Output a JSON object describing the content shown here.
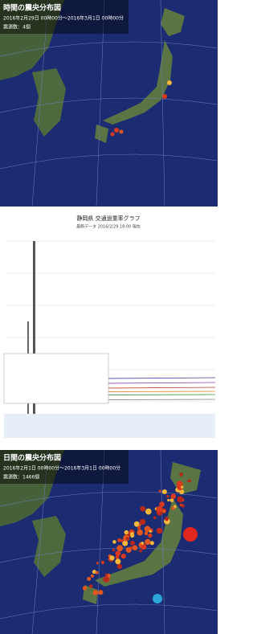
{
  "panels": [
    {
      "title": "時間の震央分布図",
      "period": "2016年2月29日 00時00分～2016年3月1日 00時00分",
      "count": "震源数：4個"
    },
    {
      "title": "静岡県 交通過重率グラフ",
      "subtitle": "最新データ 2016/2/29 18:00 現在"
    },
    {
      "title": "日間の震央分布図",
      "period": "2016年2月1日 00時00分～2016年3月1日 00時00分",
      "count": "震源数：1466個"
    }
  ]
}
